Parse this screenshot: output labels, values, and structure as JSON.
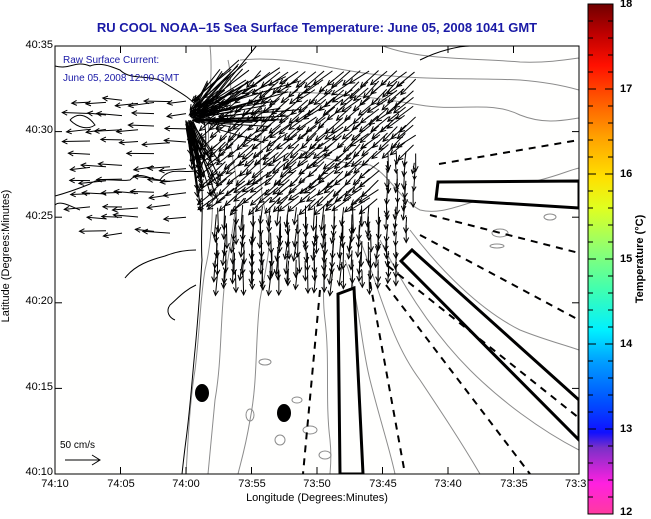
{
  "title": "RU COOL  NOAA–15  Sea Surface Temperature:  June 05, 2008 1041 GMT",
  "annotation": {
    "line1": "Raw Surface Current:",
    "line2": "June 05, 2008 12:00 GMT"
  },
  "scale": {
    "label": "50 cm/s",
    "value_cm_s": 50
  },
  "axes": {
    "xlabel": "Longitude (Degrees:Minutes)",
    "ylabel": "Latitude (Degrees:Minutes)",
    "x_ticks": [
      "74:10",
      "74:05",
      "74:00",
      "73:55",
      "73:50",
      "73:45",
      "73:40",
      "73:35",
      "73:3"
    ],
    "y_ticks": [
      "40:35",
      "40:30",
      "40:25",
      "40:20",
      "40:15",
      "40:10"
    ]
  },
  "colorbar": {
    "label": "Temperature (°C)",
    "ticks": [
      "18",
      "17",
      "16",
      "15",
      "14",
      "13",
      "12"
    ],
    "range": [
      12,
      18
    ]
  },
  "colors": {
    "title": "#1a1aa6",
    "coast": "#000000",
    "bathymetry": "#8c8c8c",
    "vectors": "#000000"
  }
}
